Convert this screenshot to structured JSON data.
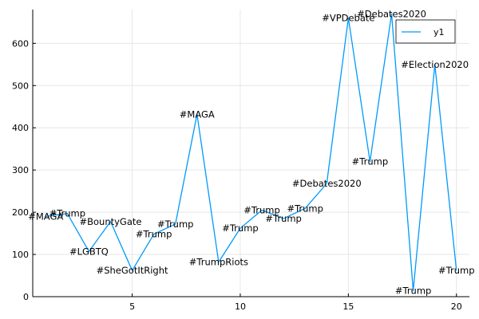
{
  "chart_data": {
    "type": "line",
    "title": "",
    "xlabel": "",
    "ylabel": "",
    "xlim": [
      0.4,
      20.6
    ],
    "ylim": [
      0,
      680
    ],
    "xticks": [
      5,
      10,
      15,
      20
    ],
    "yticks": [
      0,
      100,
      200,
      300,
      400,
      500,
      600
    ],
    "grid": true,
    "legend": {
      "position": "top-right"
    },
    "series": [
      {
        "name": "y1",
        "color": "#009AFA",
        "x": [
          1,
          2,
          3,
          4,
          5,
          6,
          7,
          8,
          9,
          10,
          11,
          12,
          13,
          14,
          15,
          16,
          17,
          18,
          19,
          20
        ],
        "y": [
          190,
          197,
          107,
          178,
          62,
          148,
          172,
          432,
          82,
          162,
          205,
          185,
          209,
          268,
          660,
          320,
          670,
          14,
          550,
          62
        ],
        "labels": [
          "#MAGA",
          "#Trump",
          "#LGBTQ",
          "#BountyGate",
          "#SheGotItRight",
          "#Trump",
          "#Trump",
          "#MAGA",
          "#TrumpRiots",
          "#Trump",
          "#Trump",
          "#Trump",
          "#Trump",
          "#Debates2020",
          "#VPDebate",
          "#Trump",
          "#Debates2020",
          "#Trump",
          "#Election2020",
          "#Trump"
        ]
      }
    ]
  }
}
